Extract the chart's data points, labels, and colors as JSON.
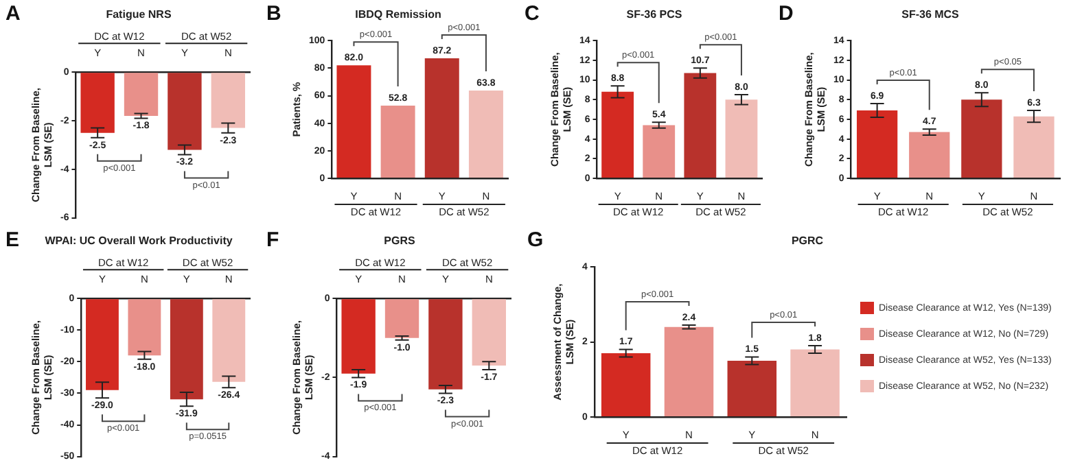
{
  "chart_data": [
    {
      "type": "bar",
      "title": "Fatigue NRS",
      "ylabel": "Change From Baseline, LSM (SE)",
      "annotations": [
        "A",
        "DC at W12",
        "DC at W52",
        "p<0.001",
        "p<0.01"
      ],
      "categories": [
        "Y",
        "N",
        "Y",
        "N"
      ],
      "ylim": [
        -6,
        0
      ],
      "yticks": [
        0,
        -2,
        -4,
        -6
      ],
      "series": [
        {
          "color": "#d42a22",
          "values": [
            -2.5,
            null,
            null,
            null
          ],
          "errors": [
            0.2,
            null,
            null,
            null
          ],
          "value_labels": [
            "-2.5",
            null,
            null,
            null
          ]
        },
        {
          "color": "#e8908a",
          "values": [
            null,
            -1.8,
            null,
            null
          ],
          "errors": [
            null,
            0.1,
            null,
            null
          ],
          "value_labels": [
            null,
            "-1.8",
            null,
            null
          ]
        },
        {
          "color": "#b8322c",
          "values": [
            null,
            null,
            -3.2,
            null
          ],
          "errors": [
            null,
            null,
            0.2,
            null
          ],
          "value_labels": [
            null,
            null,
            "-3.2",
            null
          ]
        },
        {
          "color": "#f0bcb6",
          "values": [
            null,
            null,
            null,
            -2.3
          ],
          "errors": [
            null,
            null,
            null,
            0.2
          ],
          "value_labels": [
            null,
            null,
            null,
            "-2.3"
          ]
        }
      ]
    },
    {
      "type": "bar",
      "title": "IBDQ Remission",
      "ylabel": "Patients, %",
      "annotations": [
        "B",
        "DC at W12",
        "DC at W52",
        "p<0.001",
        "p<0.001"
      ],
      "categories": [
        "Y",
        "N",
        "Y",
        "N"
      ],
      "ylim": [
        0,
        100
      ],
      "yticks": [
        0,
        20,
        40,
        60,
        80,
        100
      ],
      "series": [
        {
          "color": "#d42a22",
          "values": [
            82.0,
            null,
            null,
            null
          ],
          "value_labels": [
            "82.0",
            null,
            null,
            null
          ]
        },
        {
          "color": "#e8908a",
          "values": [
            null,
            52.8,
            null,
            null
          ],
          "value_labels": [
            null,
            "52.8",
            null,
            null
          ]
        },
        {
          "color": "#b8322c",
          "values": [
            null,
            null,
            87.2,
            null
          ],
          "value_labels": [
            null,
            null,
            "87.2",
            null
          ]
        },
        {
          "color": "#f0bcb6",
          "values": [
            null,
            null,
            null,
            63.8
          ],
          "value_labels": [
            null,
            null,
            null,
            "63.8"
          ]
        }
      ]
    },
    {
      "type": "bar",
      "title": "SF-36 PCS",
      "ylabel": "Change From Baseline, LSM (SE)",
      "annotations": [
        "C",
        "DC at W12",
        "DC at W52",
        "p<0.001",
        "p<0.001"
      ],
      "categories": [
        "Y",
        "N",
        "Y",
        "N"
      ],
      "ylim": [
        0,
        14
      ],
      "yticks": [
        0,
        2,
        4,
        6,
        8,
        10,
        12,
        14
      ],
      "series": [
        {
          "color": "#d42a22",
          "values": [
            8.8,
            null,
            null,
            null
          ],
          "errors": [
            0.6,
            null,
            null,
            null
          ],
          "value_labels": [
            "8.8",
            null,
            null,
            null
          ]
        },
        {
          "color": "#e8908a",
          "values": [
            null,
            5.4,
            null,
            null
          ],
          "errors": [
            null,
            0.3,
            null,
            null
          ],
          "value_labels": [
            null,
            "5.4",
            null,
            null
          ]
        },
        {
          "color": "#b8322c",
          "values": [
            null,
            null,
            10.7,
            null
          ],
          "errors": [
            null,
            null,
            0.5,
            null
          ],
          "value_labels": [
            null,
            null,
            "10.7",
            null
          ]
        },
        {
          "color": "#f0bcb6",
          "values": [
            null,
            null,
            null,
            8.0
          ],
          "errors": [
            null,
            null,
            null,
            0.5
          ],
          "value_labels": [
            null,
            null,
            null,
            "8.0"
          ]
        }
      ]
    },
    {
      "type": "bar",
      "title": "SF-36 MCS",
      "ylabel": "Change From Baseline, LSM (SE)",
      "annotations": [
        "D",
        "DC at W12",
        "DC at W52",
        "p<0.01",
        "p<0.05"
      ],
      "categories": [
        "Y",
        "N",
        "Y",
        "N"
      ],
      "ylim": [
        0,
        14
      ],
      "yticks": [
        0,
        2,
        4,
        6,
        8,
        10,
        12,
        14
      ],
      "series": [
        {
          "color": "#d42a22",
          "values": [
            6.9,
            null,
            null,
            null
          ],
          "errors": [
            0.7,
            null,
            null,
            null
          ],
          "value_labels": [
            "6.9",
            null,
            null,
            null
          ]
        },
        {
          "color": "#e8908a",
          "values": [
            null,
            4.7,
            null,
            null
          ],
          "errors": [
            null,
            0.3,
            null,
            null
          ],
          "value_labels": [
            null,
            "4.7",
            null,
            null
          ]
        },
        {
          "color": "#b8322c",
          "values": [
            null,
            null,
            8.0,
            null
          ],
          "errors": [
            null,
            null,
            0.7,
            null
          ],
          "value_labels": [
            null,
            null,
            "8.0",
            null
          ]
        },
        {
          "color": "#f0bcb6",
          "values": [
            null,
            null,
            null,
            6.3
          ],
          "errors": [
            null,
            null,
            null,
            0.6
          ],
          "value_labels": [
            null,
            null,
            null,
            "6.3"
          ]
        }
      ]
    },
    {
      "type": "bar",
      "title": "WPAI: UC Overall Work Productivity",
      "ylabel": "Change From Baseline, LSM (SE)",
      "annotations": [
        "E",
        "DC at W12",
        "DC at W52",
        "p<0.001",
        "p=0.0515"
      ],
      "categories": [
        "Y",
        "N",
        "Y",
        "N"
      ],
      "ylim": [
        -50,
        0
      ],
      "yticks": [
        0,
        -10,
        -20,
        -30,
        -40,
        -50
      ],
      "series": [
        {
          "color": "#d42a22",
          "values": [
            -29.0,
            null,
            null,
            null
          ],
          "errors": [
            2.5,
            null,
            null,
            null
          ],
          "value_labels": [
            "-29.0",
            null,
            null,
            null
          ]
        },
        {
          "color": "#e8908a",
          "values": [
            null,
            -18.0,
            null,
            null
          ],
          "errors": [
            null,
            1.2,
            null,
            null
          ],
          "value_labels": [
            null,
            "-18.0",
            null,
            null
          ]
        },
        {
          "color": "#b8322c",
          "values": [
            null,
            null,
            -31.9,
            null
          ],
          "errors": [
            null,
            null,
            2.2,
            null
          ],
          "value_labels": [
            null,
            null,
            "-31.9",
            null
          ]
        },
        {
          "color": "#f0bcb6",
          "values": [
            null,
            null,
            null,
            -26.4
          ],
          "errors": [
            null,
            null,
            null,
            1.8
          ],
          "value_labels": [
            null,
            null,
            null,
            "-26.4"
          ]
        }
      ]
    },
    {
      "type": "bar",
      "title": "PGRS",
      "ylabel": "Change From Baseline, LSM (SE)",
      "annotations": [
        "F",
        "DC at W12",
        "DC at W52",
        "p<0.001",
        "p<0.001"
      ],
      "categories": [
        "Y",
        "N",
        "Y",
        "N"
      ],
      "ylim": [
        -4,
        0
      ],
      "yticks": [
        0,
        -2,
        -4
      ],
      "series": [
        {
          "color": "#d42a22",
          "values": [
            -1.9,
            null,
            null,
            null
          ],
          "errors": [
            0.1,
            null,
            null,
            null
          ],
          "value_labels": [
            "-1.9",
            null,
            null,
            null
          ]
        },
        {
          "color": "#e8908a",
          "values": [
            null,
            -1.0,
            null,
            null
          ],
          "errors": [
            null,
            0.05,
            null,
            null
          ],
          "value_labels": [
            null,
            "-1.0",
            null,
            null
          ]
        },
        {
          "color": "#b8322c",
          "values": [
            null,
            null,
            -2.3,
            null
          ],
          "errors": [
            null,
            null,
            0.1,
            null
          ],
          "value_labels": [
            null,
            null,
            "-2.3",
            null
          ]
        },
        {
          "color": "#f0bcb6",
          "values": [
            null,
            null,
            null,
            -1.7
          ],
          "errors": [
            null,
            null,
            null,
            0.1
          ],
          "value_labels": [
            null,
            null,
            null,
            "-1.7"
          ]
        }
      ]
    },
    {
      "type": "bar",
      "title": "PGRC",
      "ylabel": "Assessment of Change, LSM (SE)",
      "annotations": [
        "G",
        "DC at W12",
        "DC at W52",
        "p<0.001",
        "p<0.01"
      ],
      "categories": [
        "Y",
        "N",
        "Y",
        "N"
      ],
      "ylim": [
        0,
        4
      ],
      "yticks": [
        0,
        2,
        4
      ],
      "legend": "right",
      "series": [
        {
          "name": "Disease Clearance at W12, Yes (N=139)",
          "color": "#d42a22",
          "values": [
            1.7,
            null,
            null,
            null
          ],
          "errors": [
            0.1,
            null,
            null,
            null
          ],
          "value_labels": [
            "1.7",
            null,
            null,
            null
          ]
        },
        {
          "name": "Disease Clearance at W12, No (N=729)",
          "color": "#e8908a",
          "values": [
            null,
            2.4,
            null,
            null
          ],
          "errors": [
            null,
            0.05,
            null,
            null
          ],
          "value_labels": [
            null,
            "2.4",
            null,
            null
          ]
        },
        {
          "name": "Disease Clearance at W52, Yes (N=133)",
          "color": "#b8322c",
          "values": [
            null,
            null,
            1.5,
            null
          ],
          "errors": [
            null,
            null,
            0.1,
            null
          ],
          "value_labels": [
            null,
            null,
            "1.5",
            null
          ]
        },
        {
          "name": "Disease Clearance at W52, No (N=232)",
          "color": "#f0bcb6",
          "values": [
            null,
            null,
            null,
            1.8
          ],
          "errors": [
            null,
            null,
            null,
            0.1
          ],
          "value_labels": [
            null,
            null,
            null,
            "1.8"
          ]
        }
      ]
    }
  ]
}
